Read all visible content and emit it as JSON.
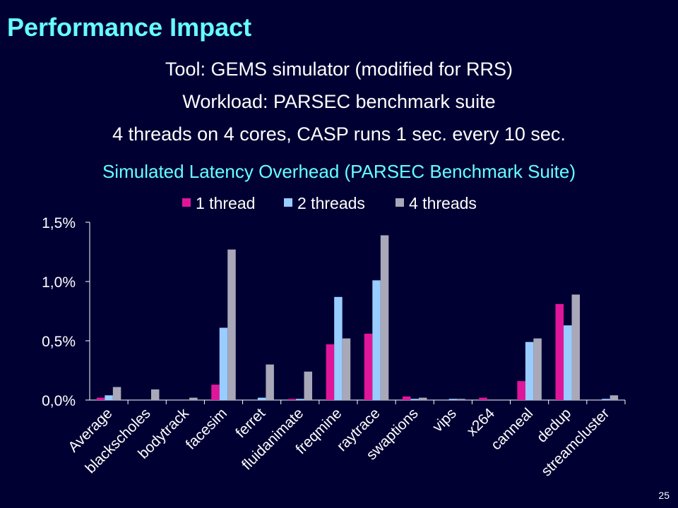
{
  "slide": {
    "title": "Performance Impact",
    "lines": [
      "Tool: GEMS simulator (modified for RRS)",
      "Workload: PARSEC benchmark suite",
      "4 threads on 4 cores, CASP runs 1 sec. every 10 sec."
    ],
    "page_number": "25"
  },
  "chart_data": {
    "type": "bar",
    "title": "Simulated Latency Overhead (PARSEC Benchmark Suite)",
    "categories": [
      "Average",
      "blackscholes",
      "bodytrack",
      "facesim",
      "ferret",
      "fluidanimate",
      "freqmine",
      "raytrace",
      "swaptions",
      "vips",
      "x264",
      "canneal",
      "dedup",
      "streamcluster"
    ],
    "series": [
      {
        "name": "1 thread",
        "color": "#e0169a",
        "values": [
          0.02,
          0.0,
          0.0,
          0.13,
          0.0,
          0.01,
          0.47,
          0.56,
          0.03,
          0.0,
          0.02,
          0.16,
          0.81,
          0.0
        ]
      },
      {
        "name": "2 threads",
        "color": "#99ccff",
        "values": [
          0.04,
          0.0,
          0.0,
          0.61,
          0.02,
          0.01,
          0.87,
          1.01,
          0.01,
          0.01,
          0.0,
          0.49,
          0.63,
          0.01
        ]
      },
      {
        "name": "4 threads",
        "color": "#a8a8b8",
        "values": [
          0.11,
          0.09,
          0.02,
          1.27,
          0.3,
          0.24,
          0.52,
          1.39,
          0.02,
          0.01,
          0.0,
          0.52,
          0.89,
          0.04
        ]
      }
    ],
    "yticks": [
      "0,0%",
      "0,5%",
      "1,0%",
      "1,5%"
    ],
    "ylim": [
      0,
      1.5
    ],
    "grid": false,
    "legend": "top"
  }
}
